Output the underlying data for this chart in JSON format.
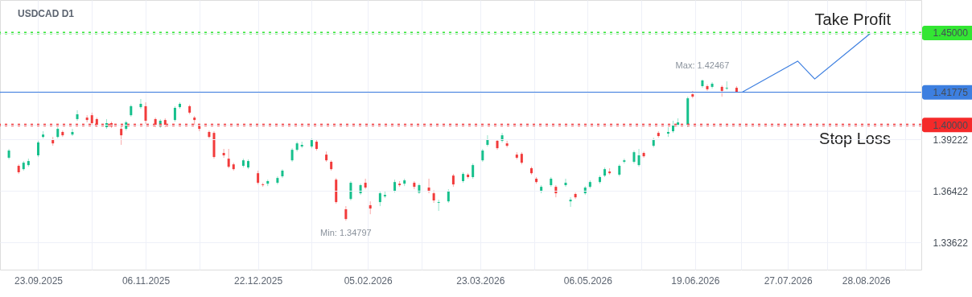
{
  "chart_data": {
    "type": "candlestick",
    "title": "USDCAD D1",
    "x": [
      "2025-09-11",
      "2025-09-15",
      "2025-09-17",
      "2025-09-19",
      "2025-09-23",
      "2025-09-25",
      "2025-09-29",
      "2025-10-01",
      "2025-10-03",
      "2025-10-07",
      "2025-10-09",
      "2025-10-13",
      "2025-10-15",
      "2025-10-17",
      "2025-10-21",
      "2025-10-23",
      "2025-10-27",
      "2025-10-29",
      "2025-10-31",
      "2025-11-04",
      "2025-11-06",
      "2025-11-10",
      "2025-11-12",
      "2025-11-14",
      "2025-11-18",
      "2025-11-20",
      "2025-11-24",
      "2025-11-26",
      "2025-11-28",
      "2025-12-02",
      "2025-12-04",
      "2025-12-08",
      "2025-12-10",
      "2025-12-12",
      "2025-12-16",
      "2025-12-18",
      "2025-12-22",
      "2025-12-24",
      "2025-12-26",
      "2025-12-30",
      "2026-01-01",
      "2026-01-05",
      "2026-01-07",
      "2026-01-09",
      "2026-01-13",
      "2026-01-15",
      "2026-01-19",
      "2026-01-21",
      "2026-01-23",
      "2026-01-27",
      "2026-01-29",
      "2026-02-02",
      "2026-02-04",
      "2026-02-06",
      "2026-02-10",
      "2026-02-12",
      "2026-02-16",
      "2026-02-18",
      "2026-02-20",
      "2026-02-24",
      "2026-02-26",
      "2026-03-02",
      "2026-03-04",
      "2026-03-06",
      "2026-03-10",
      "2026-03-12",
      "2026-03-16",
      "2026-03-18",
      "2026-03-20",
      "2026-03-24",
      "2026-03-26",
      "2026-03-30",
      "2026-04-01",
      "2026-04-03",
      "2026-04-07",
      "2026-04-09",
      "2026-04-13",
      "2026-04-15",
      "2026-04-17",
      "2026-04-21",
      "2026-04-23",
      "2026-04-27",
      "2026-04-29",
      "2026-05-01",
      "2026-05-05",
      "2026-05-07",
      "2026-05-11",
      "2026-05-13",
      "2026-05-15",
      "2026-05-19",
      "2026-05-21",
      "2026-05-25",
      "2026-05-27",
      "2026-05-29",
      "2026-06-02",
      "2026-06-04",
      "2026-06-08",
      "2026-06-10",
      "2026-06-12",
      "2026-06-16",
      "2026-06-18",
      "2026-06-22",
      "2026-06-24",
      "2026-06-26",
      "2026-06-30",
      "2026-07-02",
      "2026-07-06"
    ],
    "ohlc": [
      [
        1.3822,
        1.387,
        1.3813,
        1.3861
      ],
      [
        1.3778,
        1.3786,
        1.3734,
        1.3743
      ],
      [
        1.376,
        1.3804,
        1.3752,
        1.3795
      ],
      [
        1.3782,
        1.3817,
        1.3773,
        1.3804
      ],
      [
        1.3835,
        1.3914,
        1.3826,
        1.3905
      ],
      [
        1.3935,
        1.3966,
        1.3927,
        1.3948
      ],
      [
        1.3922,
        1.3935,
        1.3887,
        1.39
      ],
      [
        1.3935,
        1.3988,
        1.3927,
        1.3979
      ],
      [
        1.3962,
        1.397,
        1.3935,
        1.3944
      ],
      [
        1.3948,
        1.3979,
        1.394,
        1.3962
      ],
      [
        1.4032,
        1.408,
        1.4023,
        1.4058
      ],
      [
        1.404,
        1.4053,
        1.4014,
        1.4027
      ],
      [
        1.4053,
        1.4067,
        1.3997,
        1.401
      ],
      [
        1.4032,
        1.404,
        1.3988,
        1.3997
      ],
      [
        1.3988,
        1.4032,
        1.3979,
        1.401
      ],
      [
        1.401,
        1.4018,
        1.3984,
        1.3992
      ],
      [
        1.3979,
        1.3992,
        1.3892,
        1.3944
      ],
      [
        1.3979,
        1.4023,
        1.397,
        1.4014
      ],
      [
        1.4053,
        1.411,
        1.4045,
        1.4102
      ],
      [
        1.4097,
        1.4141,
        1.4088,
        1.4115
      ],
      [
        1.4102,
        1.4123,
        1.4005,
        1.4023
      ],
      [
        1.4032,
        1.404,
        1.3988,
        1.3997
      ],
      [
        1.3992,
        1.4032,
        1.3984,
        1.4023
      ],
      [
        1.4027,
        1.4036,
        1.3988,
        1.3997
      ],
      [
        1.4027,
        1.4102,
        1.4018,
        1.4093
      ],
      [
        1.4097,
        1.4123,
        1.4088,
        1.4115
      ],
      [
        1.4102,
        1.411,
        1.4058,
        1.4067
      ],
      [
        1.404,
        1.4049,
        1.3997,
        1.4027
      ],
      [
        1.3992,
        1.4001,
        1.3966,
        1.3979
      ],
      [
        1.3962,
        1.397,
        1.3927,
        1.3935
      ],
      [
        1.3957,
        1.3966,
        1.3817,
        1.3826
      ],
      [
        1.3848,
        1.387,
        1.3822,
        1.3835
      ],
      [
        1.3817,
        1.387,
        1.3765,
        1.3773
      ],
      [
        1.3786,
        1.3795,
        1.3752,
        1.376
      ],
      [
        1.3778,
        1.3817,
        1.3769,
        1.3808
      ],
      [
        1.3769,
        1.3813,
        1.376,
        1.3804
      ],
      [
        1.3738,
        1.3752,
        1.3677,
        1.3686
      ],
      [
        1.3677,
        1.3686,
        1.3664,
        1.3673
      ],
      [
        1.3681,
        1.3703,
        1.3668,
        1.3695
      ],
      [
        1.3686,
        1.3721,
        1.3677,
        1.3712
      ],
      [
        1.3721,
        1.376,
        1.3712,
        1.3752
      ],
      [
        1.3808,
        1.3874,
        1.38,
        1.3865
      ],
      [
        1.3865,
        1.3909,
        1.3856,
        1.39
      ],
      [
        1.3883,
        1.3909,
        1.3874,
        1.3892
      ],
      [
        1.3883,
        1.3927,
        1.3874,
        1.3918
      ],
      [
        1.3909,
        1.3918,
        1.3861,
        1.387
      ],
      [
        1.3839,
        1.3856,
        1.38,
        1.3808
      ],
      [
        1.38,
        1.3808,
        1.3752,
        1.376
      ],
      [
        1.3703,
        1.3712,
        1.3572,
        1.3581
      ],
      [
        1.3542,
        1.3559,
        1.348,
        1.3489
      ],
      [
        1.3598,
        1.3695,
        1.359,
        1.3686
      ],
      [
        1.3629,
        1.3681,
        1.362,
        1.3673
      ],
      [
        1.3686,
        1.3708,
        1.3651,
        1.366
      ],
      [
        1.3564,
        1.3585,
        1.3515,
        1.3546
      ],
      [
        1.3581,
        1.3638,
        1.3559,
        1.3629
      ],
      [
        1.3612,
        1.3638,
        1.3603,
        1.362
      ],
      [
        1.3642,
        1.3703,
        1.3633,
        1.369
      ],
      [
        1.3681,
        1.3695,
        1.3664,
        1.3673
      ],
      [
        1.3681,
        1.3708,
        1.3668,
        1.3699
      ],
      [
        1.3686,
        1.3695,
        1.3651,
        1.3664
      ],
      [
        1.3633,
        1.3681,
        1.3625,
        1.3673
      ],
      [
        1.366,
        1.3708,
        1.3629,
        1.3638
      ],
      [
        1.3629,
        1.3646,
        1.3577,
        1.359
      ],
      [
        1.3577,
        1.3594,
        1.3533,
        1.3581
      ],
      [
        1.3585,
        1.3651,
        1.3577,
        1.3642
      ],
      [
        1.3725,
        1.3734,
        1.3664,
        1.3677
      ],
      [
        1.3695,
        1.3743,
        1.3686,
        1.3734
      ],
      [
        1.373,
        1.3738,
        1.3708,
        1.3717
      ],
      [
        1.3717,
        1.3791,
        1.3708,
        1.3782
      ],
      [
        1.3808,
        1.387,
        1.38,
        1.3861
      ],
      [
        1.3892,
        1.3944,
        1.3883,
        1.3922
      ],
      [
        1.3914,
        1.3922,
        1.3865,
        1.3874
      ],
      [
        1.3914,
        1.3957,
        1.3905,
        1.3944
      ],
      [
        1.39,
        1.3914,
        1.3878,
        1.3887
      ],
      [
        1.3839,
        1.3852,
        1.3813,
        1.3822
      ],
      [
        1.3843,
        1.3852,
        1.3786,
        1.3795
      ],
      [
        1.3765,
        1.3773,
        1.373,
        1.3738
      ],
      [
        1.3708,
        1.3717,
        1.3681,
        1.369
      ],
      [
        1.3638,
        1.3673,
        1.3629,
        1.3664
      ],
      [
        1.3673,
        1.3717,
        1.3664,
        1.3708
      ],
      [
        1.3664,
        1.3673,
        1.3607,
        1.3629
      ],
      [
        1.3673,
        1.3708,
        1.3664,
        1.3686
      ],
      [
        1.3585,
        1.3607,
        1.3555,
        1.3594
      ],
      [
        1.3625,
        1.3633,
        1.3598,
        1.3607
      ],
      [
        1.3629,
        1.3668,
        1.362,
        1.366
      ],
      [
        1.3664,
        1.3699,
        1.3655,
        1.369
      ],
      [
        1.369,
        1.3725,
        1.3681,
        1.3717
      ],
      [
        1.3725,
        1.3769,
        1.3717,
        1.376
      ],
      [
        1.3747,
        1.3765,
        1.373,
        1.3738
      ],
      [
        1.373,
        1.3786,
        1.3721,
        1.3778
      ],
      [
        1.38,
        1.3817,
        1.3791,
        1.3808
      ],
      [
        1.38,
        1.3861,
        1.3791,
        1.3852
      ],
      [
        1.3782,
        1.387,
        1.3773,
        1.3835
      ],
      [
        1.3848,
        1.3856,
        1.3822,
        1.383
      ],
      [
        1.3887,
        1.3931,
        1.3878,
        1.3922
      ],
      [
        1.3957,
        1.3966,
        1.3931,
        1.394
      ],
      [
        1.3953,
        1.3988,
        1.3935,
        1.3962
      ],
      [
        1.3966,
        1.4023,
        1.3957,
        1.3997
      ],
      [
        1.4001,
        1.4036,
        1.3992,
        1.4014
      ],
      [
        1.3997,
        1.4154,
        1.3988,
        1.4145
      ],
      [
        1.4167,
        1.4185,
        1.4145,
        1.4154
      ],
      [
        1.4211,
        1.4247,
        1.4202,
        1.4242
      ],
      [
        1.4211,
        1.422,
        1.4185,
        1.4194
      ],
      [
        1.4207,
        1.4233,
        1.4198,
        1.4224
      ],
      [
        1.4207,
        1.4215,
        1.4154,
        1.4185
      ],
      [
        1.4198,
        1.4237,
        1.4189,
        1.4202
      ],
      [
        1.4202,
        1.4211,
        1.4172,
        1.4176
      ]
    ],
    "series": [
      {
        "type": "line",
        "color": "#3d7fe0",
        "x": [
          "2026-07-08",
          "2026-07-31",
          "2026-08-07",
          "2026-08-30"
        ],
        "values": [
          1.4176,
          1.4347,
          1.425,
          1.45
        ]
      }
    ],
    "xlim": [
      "2025-09-09",
      "2026-09-18"
    ],
    "xticks": [
      {
        "value": "2025-09-23",
        "label": "23.09.2025"
      },
      {
        "value": "2025-10-15",
        "label": null
      },
      {
        "value": "2025-11-06",
        "label": "06.11.2025"
      },
      {
        "value": "2025-11-28",
        "label": null
      },
      {
        "value": "2025-12-22",
        "label": "22.12.2025"
      },
      {
        "value": "2026-01-13",
        "label": null
      },
      {
        "value": "2026-02-05",
        "label": "05.02.2026"
      },
      {
        "value": "2026-02-27",
        "label": null
      },
      {
        "value": "2026-03-23",
        "label": "23.03.2026"
      },
      {
        "value": "2026-04-14",
        "label": null
      },
      {
        "value": "2026-05-06",
        "label": "06.05.2026"
      },
      {
        "value": "2026-05-28",
        "label": null
      },
      {
        "value": "2026-06-19",
        "label": "19.06.2026"
      },
      {
        "value": "2026-07-08",
        "label": null
      },
      {
        "value": "2026-07-27",
        "label": "27.07.2026"
      },
      {
        "value": "2026-08-12",
        "label": null
      },
      {
        "value": "2026-08-28",
        "label": "28.08.2026"
      },
      {
        "value": "2026-09-13",
        "label": null
      }
    ],
    "ylim": [
      1.3214,
      1.4679
    ],
    "yticks": [
      {
        "value": 1.33622,
        "label": "1.33622"
      },
      {
        "value": 1.36422,
        "label": "1.36422"
      },
      {
        "value": 1.39222,
        "label": "1.39222"
      },
      {
        "value": 1.4,
        "label": "1.40000"
      },
      {
        "value": 1.41775,
        "label": "1.41775"
      },
      {
        "value": 1.45,
        "label": "1.45000"
      }
    ],
    "grid": true,
    "ref_lines": [
      {
        "axis": "y",
        "value": 1.45,
        "label": "Take Profit",
        "color": "#33e633",
        "line_style": "dotted"
      },
      {
        "axis": "y",
        "value": 1.4,
        "label": "Stop Loss",
        "color": "#f52a2a",
        "line_style": "dotted"
      },
      {
        "axis": "y",
        "value": 1.41775,
        "label": null,
        "color": "#3d7fe0",
        "line_style": "solid"
      }
    ],
    "annotations": [
      {
        "text": "Max: 1.42467",
        "x": "2026-06-22",
        "y": 1.4247
      },
      {
        "text": "Min: 1.34797",
        "x": "2026-01-27",
        "y": 1.348
      }
    ]
  }
}
